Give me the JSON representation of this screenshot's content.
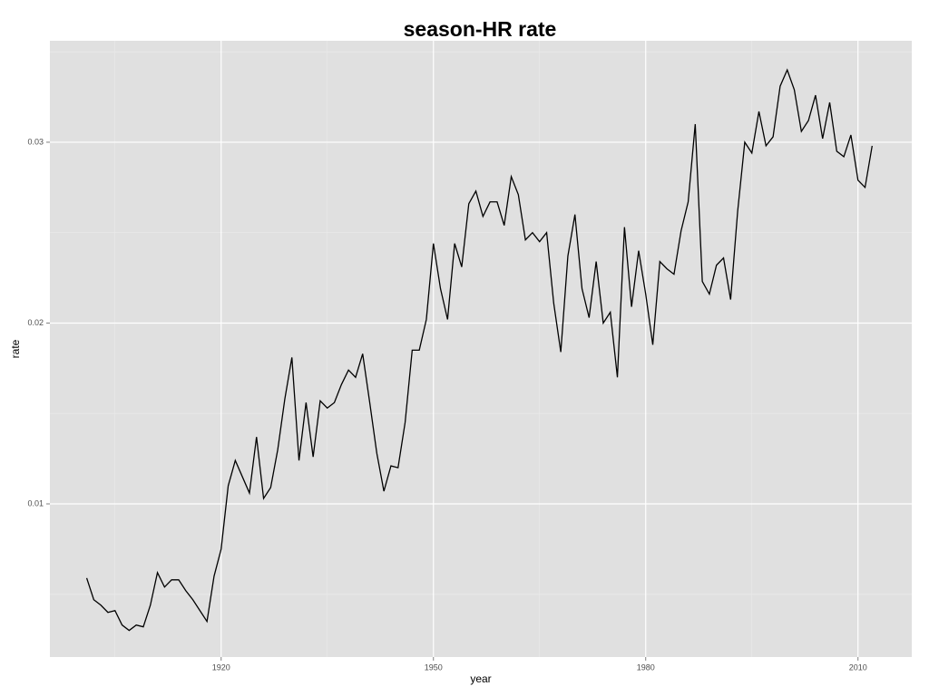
{
  "chart_data": {
    "type": "line",
    "title": "season-HR rate",
    "x_label": "year",
    "y_label": "rate",
    "x": [
      1901,
      1902,
      1903,
      1904,
      1905,
      1906,
      1907,
      1908,
      1909,
      1910,
      1911,
      1912,
      1913,
      1914,
      1915,
      1916,
      1917,
      1918,
      1919,
      1920,
      1921,
      1922,
      1923,
      1924,
      1925,
      1926,
      1927,
      1928,
      1929,
      1930,
      1931,
      1932,
      1933,
      1934,
      1935,
      1936,
      1937,
      1938,
      1939,
      1940,
      1941,
      1942,
      1943,
      1944,
      1945,
      1946,
      1947,
      1948,
      1949,
      1950,
      1951,
      1952,
      1953,
      1954,
      1955,
      1956,
      1957,
      1958,
      1959,
      1960,
      1961,
      1962,
      1963,
      1964,
      1965,
      1966,
      1967,
      1968,
      1969,
      1970,
      1971,
      1972,
      1973,
      1974,
      1975,
      1976,
      1977,
      1978,
      1979,
      1980,
      1981,
      1982,
      1983,
      1984,
      1985,
      1986,
      1987,
      1988,
      1989,
      1990,
      1991,
      1992,
      1993,
      1994,
      1995,
      1996,
      1997,
      1998,
      1999,
      2000,
      2001,
      2002,
      2003,
      2004,
      2005,
      2006,
      2007,
      2008,
      2009,
      2010,
      2011,
      2012
    ],
    "series": [
      {
        "color": "#000000",
        "values": [
          0.0059,
          0.0047,
          0.0044,
          0.004,
          0.0041,
          0.0033,
          0.003,
          0.0033,
          0.0032,
          0.0044,
          0.0062,
          0.0054,
          0.0058,
          0.0058,
          0.0052,
          0.0047,
          0.0041,
          0.0035,
          0.006,
          0.0075,
          0.011,
          0.0124,
          0.0115,
          0.0106,
          0.0137,
          0.0103,
          0.0109,
          0.013,
          0.0158,
          0.0181,
          0.0124,
          0.0156,
          0.0126,
          0.0157,
          0.0153,
          0.0156,
          0.0166,
          0.0174,
          0.017,
          0.0183,
          0.0156,
          0.0128,
          0.0107,
          0.0121,
          0.012,
          0.0145,
          0.0185,
          0.0185,
          0.0202,
          0.0244,
          0.0219,
          0.0202,
          0.0244,
          0.0231,
          0.0266,
          0.0273,
          0.0259,
          0.0267,
          0.0267,
          0.0254,
          0.0281,
          0.0271,
          0.0246,
          0.025,
          0.0245,
          0.025,
          0.0211,
          0.0184,
          0.0237,
          0.026,
          0.0219,
          0.0203,
          0.0234,
          0.02,
          0.0206,
          0.017,
          0.0253,
          0.0209,
          0.024,
          0.0216,
          0.0188,
          0.0234,
          0.023,
          0.0227,
          0.0251,
          0.0267,
          0.031,
          0.0223,
          0.0216,
          0.0232,
          0.0236,
          0.0213,
          0.0262,
          0.03,
          0.0294,
          0.0317,
          0.0298,
          0.0303,
          0.0331,
          0.034,
          0.0329,
          0.0306,
          0.0312,
          0.0326,
          0.0302,
          0.0322,
          0.0295,
          0.0292,
          0.0304,
          0.0279,
          0.0275,
          0.0298
        ]
      }
    ],
    "xlim": [
      1895.8,
      2017.6
    ],
    "xticks": [
      1920,
      1950,
      1980,
      2010
    ],
    "ylim": [
      0.00153,
      0.03561
    ],
    "yticks": [
      0.01,
      0.02,
      0.03
    ],
    "grid": true
  }
}
